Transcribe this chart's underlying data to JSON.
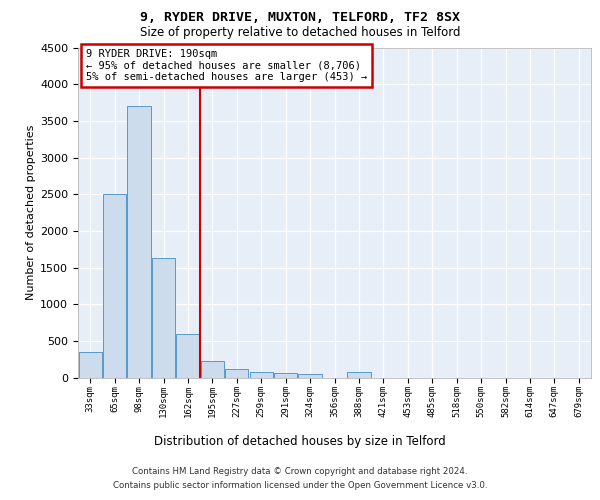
{
  "title1": "9, RYDER DRIVE, MUXTON, TELFORD, TF2 8SX",
  "title2": "Size of property relative to detached houses in Telford",
  "xlabel": "Distribution of detached houses by size in Telford",
  "ylabel": "Number of detached properties",
  "categories": [
    "33sqm",
    "65sqm",
    "98sqm",
    "130sqm",
    "162sqm",
    "195sqm",
    "227sqm",
    "259sqm",
    "291sqm",
    "324sqm",
    "356sqm",
    "388sqm",
    "421sqm",
    "453sqm",
    "485sqm",
    "518sqm",
    "550sqm",
    "582sqm",
    "614sqm",
    "647sqm",
    "679sqm"
  ],
  "values": [
    350,
    2500,
    3700,
    1630,
    600,
    220,
    110,
    75,
    55,
    50,
    0,
    75,
    0,
    0,
    0,
    0,
    0,
    0,
    0,
    0,
    0
  ],
  "bar_color": "#ccdcec",
  "bar_edge_color": "#5599cc",
  "red_line_index": 5,
  "annotation_line1": "9 RYDER DRIVE: 190sqm",
  "annotation_line2": "← 95% of detached houses are smaller (8,706)",
  "annotation_line3": "5% of semi-detached houses are larger (453) →",
  "annotation_box_color": "#ffffff",
  "annotation_box_edge_color": "#cc0000",
  "vline_color": "#cc0000",
  "plot_bg_color": "#e8eef8",
  "grid_color": "#ffffff",
  "ylim_max": 4500,
  "ytick_step": 500,
  "footer1": "Contains HM Land Registry data © Crown copyright and database right 2024.",
  "footer2": "Contains public sector information licensed under the Open Government Licence v3.0."
}
